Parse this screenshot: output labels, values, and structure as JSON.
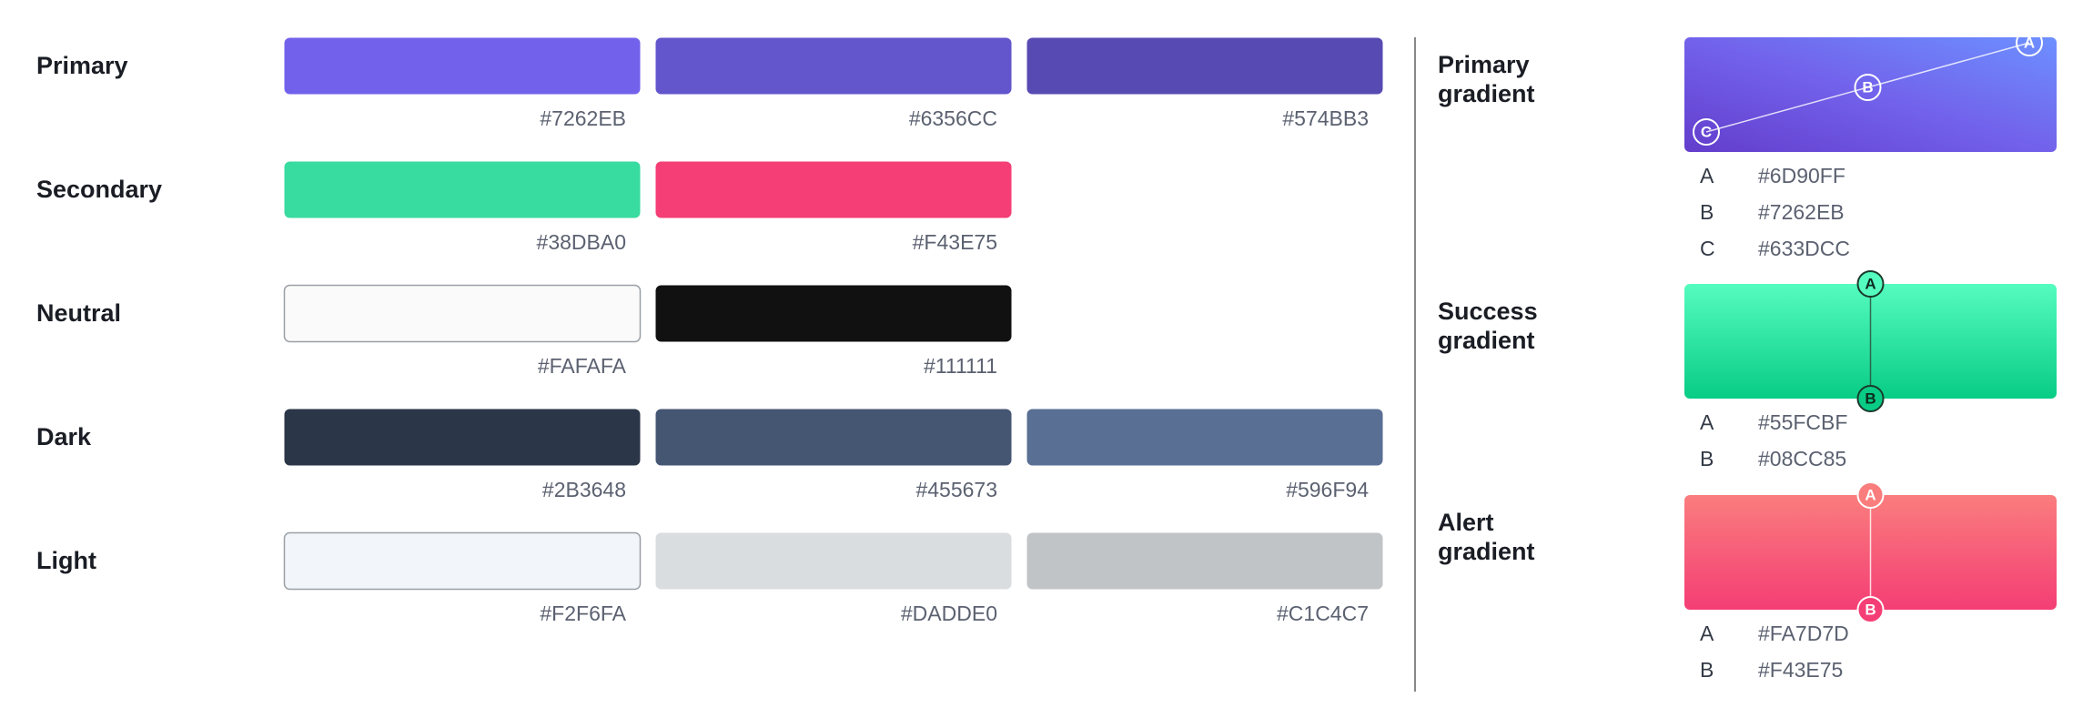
{
  "palette": [
    {
      "name": "Primary",
      "swatches": [
        "#7262EB",
        "#6356CC",
        "#574BB3"
      ]
    },
    {
      "name": "Secondary",
      "swatches": [
        "#38DBA0",
        "#F43E75"
      ]
    },
    {
      "name": "Neutral",
      "swatches": [
        "#FAFAFA",
        "#111111"
      ]
    },
    {
      "name": "Dark",
      "swatches": [
        "#2B3648",
        "#455673",
        "#596F94"
      ]
    },
    {
      "name": "Light",
      "swatches": [
        "#F2F6FA",
        "#DADDE0",
        "#C1C4C7"
      ]
    }
  ],
  "gradients": [
    {
      "name": "Primary gradient",
      "stops": [
        {
          "label": "A",
          "hex": "#6D90FF"
        },
        {
          "label": "B",
          "hex": "#7262EB"
        },
        {
          "label": "C",
          "hex": "#633DCC"
        }
      ]
    },
    {
      "name": "Success gradient",
      "stops": [
        {
          "label": "A",
          "hex": "#55FCBF"
        },
        {
          "label": "B",
          "hex": "#08CC85"
        }
      ]
    },
    {
      "name": "Alert gradient",
      "stops": [
        {
          "label": "A",
          "hex": "#FA7D7D"
        },
        {
          "label": "B",
          "hex": "#F43E75"
        }
      ]
    }
  ]
}
